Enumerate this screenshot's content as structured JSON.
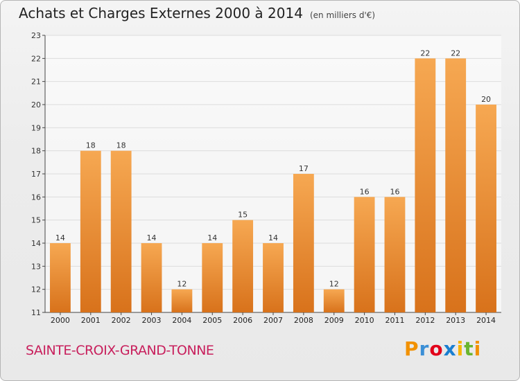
{
  "title": "Achats et Charges Externes 2000 à 2014",
  "unit": "(en milliers d'€)",
  "commune": "SAINTE-CROIX-GRAND-TONNE",
  "logo": {
    "text": "Proxiti",
    "letters": [
      {
        "char": "P",
        "color": "#f29100"
      },
      {
        "char": "r",
        "color": "#3b8fd6"
      },
      {
        "char": "o",
        "color": "#e2001a"
      },
      {
        "char": "x",
        "color": "#1a7fd0"
      },
      {
        "char": "i",
        "color": "#f7b500"
      },
      {
        "char": "t",
        "color": "#6bb52f"
      },
      {
        "char": "i",
        "color": "#f29100"
      }
    ]
  },
  "colors": {
    "bar_top": "#f6a852",
    "bar_bottom": "#d8721b",
    "grid": "#dcdcdc",
    "axis": "#444444"
  },
  "chart_data": {
    "type": "bar",
    "categories": [
      "2000",
      "2001",
      "2002",
      "2003",
      "2004",
      "2005",
      "2006",
      "2007",
      "2008",
      "2009",
      "2010",
      "2011",
      "2012",
      "2013",
      "2014"
    ],
    "values": [
      14,
      18,
      18,
      14,
      12,
      14,
      15,
      14,
      17,
      12,
      16,
      16,
      22,
      22,
      20
    ],
    "ylim": [
      11,
      23
    ],
    "yticks": [
      11,
      12,
      13,
      14,
      15,
      16,
      17,
      18,
      19,
      20,
      21,
      22,
      23
    ],
    "grid": true,
    "data_labels": true
  }
}
